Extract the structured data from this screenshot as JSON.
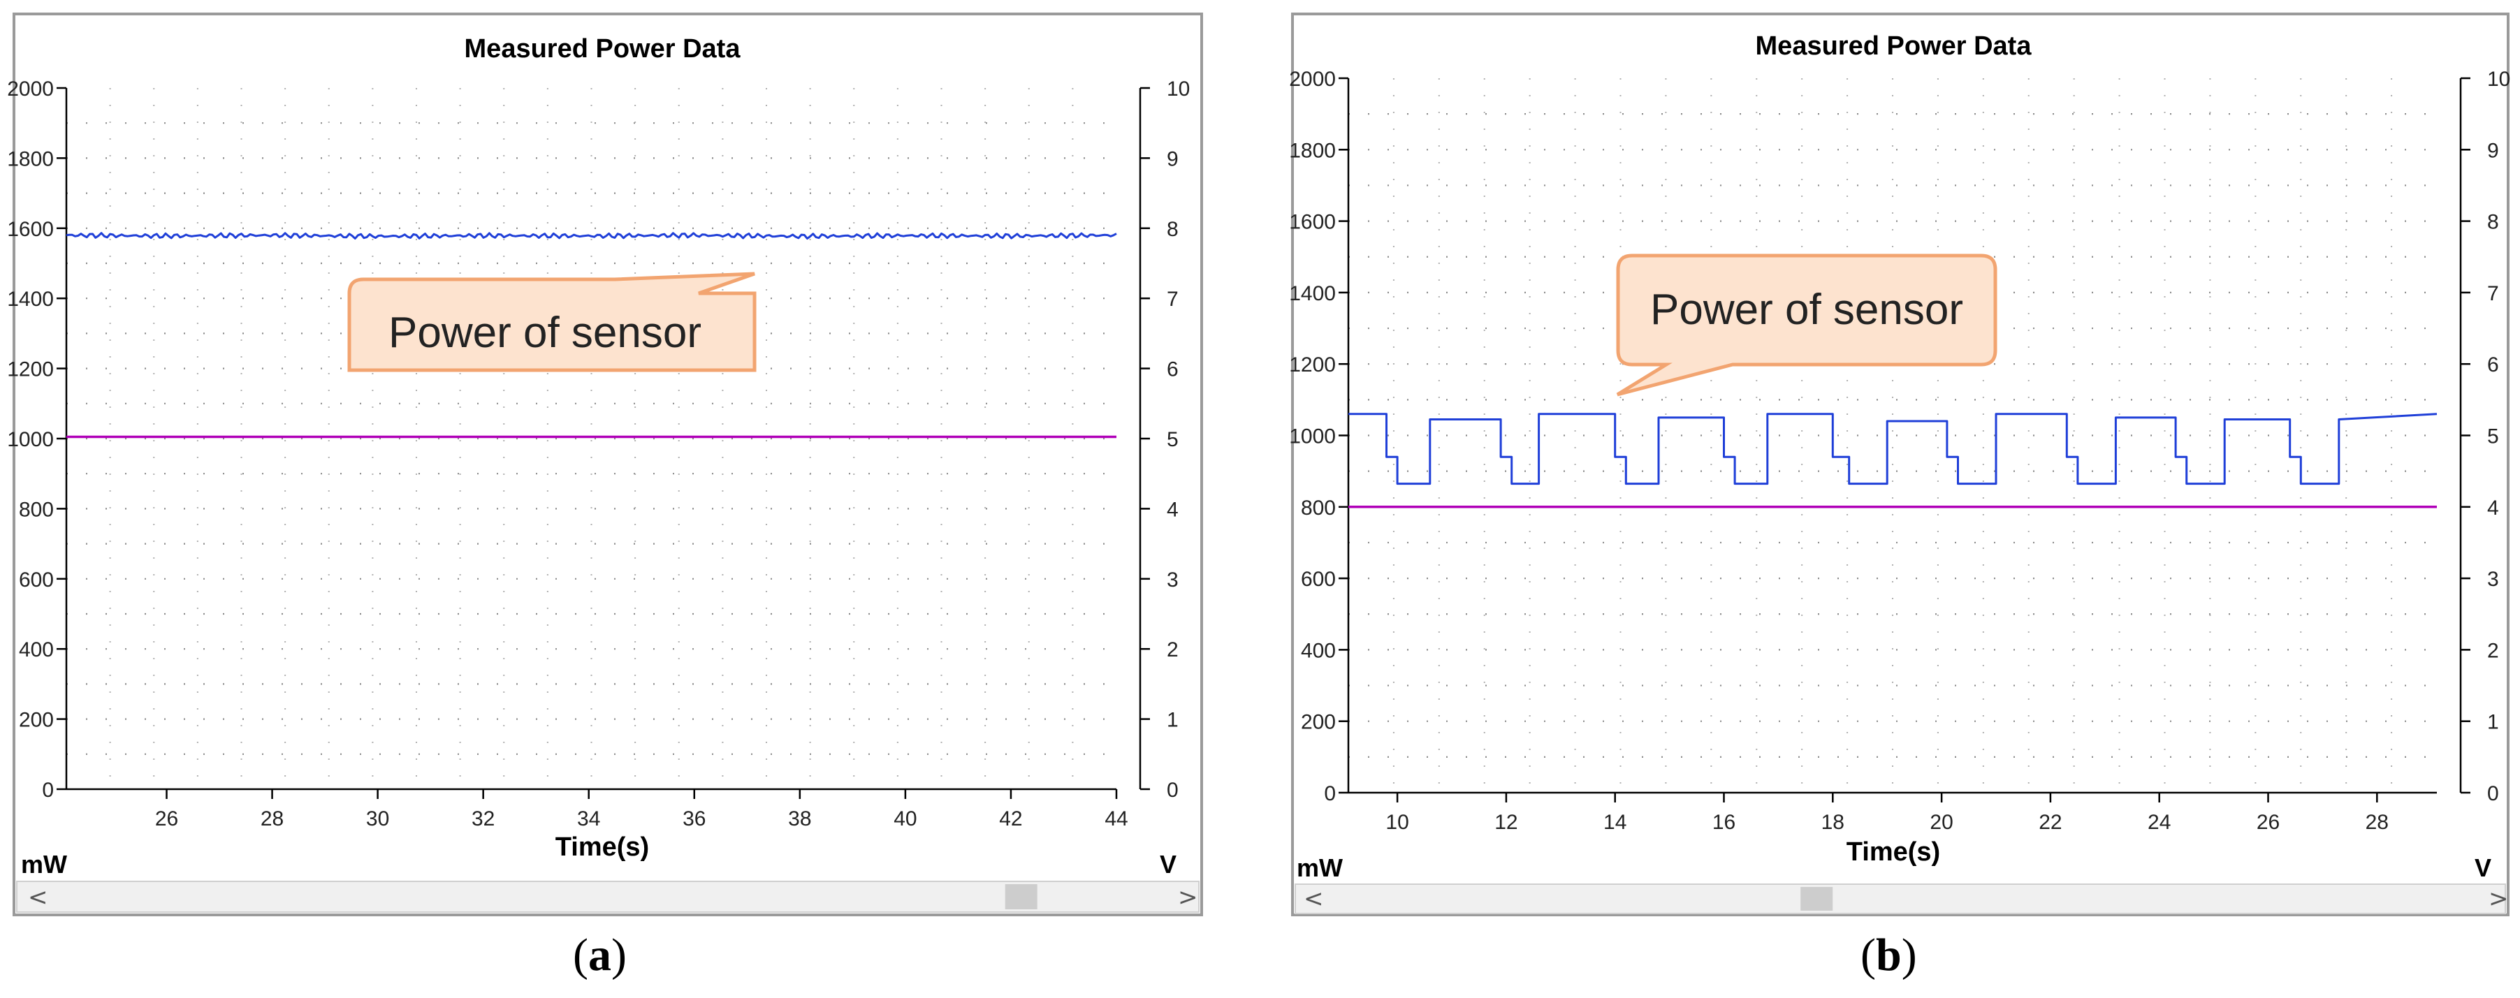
{
  "chart_data": [
    {
      "type": "line",
      "title": "Measured Power Data",
      "xlabel": "Time(s)",
      "ylabel_left": "mW",
      "ylabel_right": "V",
      "xlim": [
        24.1,
        44.0
      ],
      "ylim_left": [
        0,
        2000
      ],
      "ylim_right": [
        0,
        10
      ],
      "x_ticks": [
        26,
        28,
        30,
        32,
        34,
        36,
        38,
        40,
        42,
        44
      ],
      "y_ticks_left": [
        0,
        200,
        400,
        600,
        800,
        1000,
        1200,
        1400,
        1600,
        1800,
        2000
      ],
      "y_ticks_right": [
        0,
        1,
        2,
        3,
        4,
        5,
        6,
        7,
        8,
        9,
        10
      ],
      "grid": "dotted",
      "series": [
        {
          "x": [
            24.1,
            26,
            28,
            30,
            32,
            34,
            36,
            38,
            40,
            42,
            44
          ],
          "values": [
            1580,
            1578,
            1580,
            1577,
            1579,
            1578,
            1580,
            1577,
            1579,
            1578,
            1580
          ],
          "color": "#1f3fd8"
        },
        {
          "x": [
            24.1,
            44.0
          ],
          "values": [
            1005,
            1005
          ],
          "color": "#b000b8"
        }
      ],
      "annotation": "Power of sensor",
      "scrollbar_thumb": 0.88
    },
    {
      "type": "line",
      "title": "Measured Power Data",
      "xlabel": "Time(s)",
      "ylabel_left": "mW",
      "ylabel_right": "V",
      "xlim": [
        9.1,
        29.1
      ],
      "ylim_left": [
        0,
        2000
      ],
      "ylim_right": [
        0,
        10
      ],
      "x_ticks": [
        10,
        12,
        14,
        16,
        18,
        20,
        22,
        24,
        26,
        28
      ],
      "y_ticks_left": [
        0,
        200,
        400,
        600,
        800,
        1000,
        1200,
        1400,
        1600,
        1800,
        2000
      ],
      "y_ticks_right": [
        0,
        1,
        2,
        3,
        4,
        5,
        6,
        7,
        8,
        9,
        10
      ],
      "grid": "dotted",
      "series": [
        {
          "x": [
            9.1,
            9.8,
            9.8,
            10.0,
            10.0,
            10.6,
            10.6,
            11.9,
            11.9,
            12.1,
            12.1,
            12.6,
            12.6,
            14.0,
            14.0,
            14.2,
            14.2,
            14.8,
            14.8,
            16.0,
            16.0,
            16.2,
            16.2,
            16.8,
            16.8,
            18.0,
            18.0,
            18.3,
            18.3,
            19.0,
            19.0,
            20.1,
            20.1,
            20.3,
            20.3,
            21.0,
            21.0,
            22.3,
            22.3,
            22.5,
            22.5,
            23.2,
            23.2,
            24.3,
            24.3,
            24.5,
            24.5,
            25.2,
            25.2,
            26.4,
            26.4,
            26.6,
            26.6,
            27.3,
            27.3,
            29.1
          ],
          "values": [
            1060,
            1060,
            940,
            940,
            865,
            865,
            1045,
            1045,
            940,
            940,
            865,
            865,
            1060,
            1060,
            940,
            940,
            865,
            865,
            1050,
            1050,
            940,
            940,
            865,
            865,
            1060,
            1060,
            940,
            940,
            865,
            865,
            1040,
            1040,
            940,
            940,
            865,
            865,
            1060,
            1060,
            940,
            940,
            865,
            865,
            1050,
            1050,
            940,
            940,
            865,
            865,
            1045,
            1045,
            940,
            940,
            865,
            865,
            1045,
            1060
          ],
          "color": "#1f3fd8"
        },
        {
          "x": [
            9.1,
            29.1
          ],
          "values": [
            800,
            800
          ],
          "color": "#b000b8"
        }
      ],
      "annotation": "Power of sensor",
      "scrollbar_thumb": 0.42
    }
  ],
  "captions": [
    {
      "open": "(",
      "letter": "a",
      "close": ")"
    },
    {
      "open": "(",
      "letter": "b",
      "close": ")"
    }
  ],
  "scrollbar": {
    "left_arrow": "<",
    "right_arrow": ">"
  }
}
